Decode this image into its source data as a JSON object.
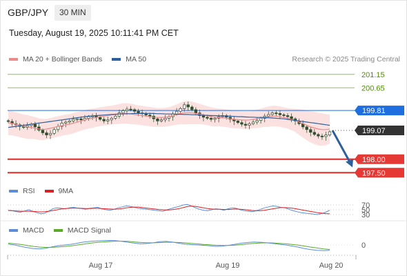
{
  "header": {
    "pair": "GBP/JPY",
    "timeframe": "30 MIN",
    "datetime": "Tuesday, August 19, 2025 10:11:41 PM CET",
    "credit": "Research © 2025 Trading Central"
  },
  "legend": {
    "ma20_label": "MA 20 + Bollinger Bands",
    "ma50_label": "MA 50",
    "rsi_label": "RSI",
    "ma9_label": "9MA",
    "macd_label": "MACD",
    "macd_signal_label": "MACD Signal"
  },
  "colors": {
    "ma20": "#f08a8a",
    "ma50": "#2d5f9e",
    "band": "#fbd7d7",
    "resistance": "#8bc34a",
    "support": "#e53935",
    "pivot": "#1e6ee0",
    "current": "#333333",
    "rsi": "#5b8ddb",
    "ma9": "#e02020",
    "macd": "#5b8ddb",
    "macd_signal": "#5aab2a",
    "arrow": "#2f5f9a"
  },
  "chart_data": {
    "type": "line",
    "instrument": "GBP/JPY",
    "timeframe": "30 MIN",
    "x_ticks": [
      "Aug 17",
      "Aug 19",
      "Aug 20"
    ],
    "ylim": [
      197.2,
      201.4
    ],
    "price_levels": [
      {
        "value": 201.15,
        "label": "201.15",
        "kind": "resistance"
      },
      {
        "value": 200.65,
        "label": "200.65",
        "kind": "resistance"
      },
      {
        "value": 199.81,
        "label": "199.81",
        "kind": "pivot"
      },
      {
        "value": 199.07,
        "label": "199.07",
        "kind": "current"
      },
      {
        "value": 198.0,
        "label": "198.00",
        "kind": "support"
      },
      {
        "value": 197.5,
        "label": "197.50",
        "kind": "support"
      }
    ],
    "close": [
      199.4,
      199.32,
      199.28,
      199.22,
      199.18,
      199.25,
      199.3,
      199.2,
      199.08,
      198.98,
      198.9,
      198.96,
      199.1,
      199.22,
      199.34,
      199.38,
      199.42,
      199.48,
      199.5,
      199.46,
      199.52,
      199.58,
      199.6,
      199.55,
      199.48,
      199.42,
      199.46,
      199.52,
      199.6,
      199.72,
      199.8,
      199.86,
      199.84,
      199.78,
      199.72,
      199.7,
      199.64,
      199.6,
      199.5,
      199.42,
      199.46,
      199.52,
      199.58,
      199.68,
      199.78,
      199.88,
      200.02,
      199.94,
      199.84,
      199.72,
      199.62,
      199.56,
      199.52,
      199.48,
      199.52,
      199.58,
      199.62,
      199.56,
      199.48,
      199.42,
      199.36,
      199.3,
      199.26,
      199.32,
      199.38,
      199.44,
      199.52,
      199.6,
      199.66,
      199.72,
      199.7,
      199.65,
      199.62,
      199.58,
      199.5,
      199.42,
      199.32,
      199.2,
      199.1,
      199.0,
      198.92,
      198.86,
      198.84,
      198.9,
      199.02
    ],
    "ma20": [
      199.35,
      199.33,
      199.3,
      199.26,
      199.22,
      199.2,
      199.18,
      199.15,
      199.12,
      199.1,
      199.12,
      199.15,
      199.18,
      199.22,
      199.25,
      199.28,
      199.3,
      199.34,
      199.38,
      199.42,
      199.46,
      199.5,
      199.52,
      199.55,
      199.58,
      199.6,
      199.62,
      199.64,
      199.66,
      199.68,
      199.7,
      199.7,
      199.68,
      199.66,
      199.64,
      199.62,
      199.6,
      199.58,
      199.56,
      199.55,
      199.55,
      199.56,
      199.58,
      199.62,
      199.66,
      199.7,
      199.72,
      199.73,
      199.72,
      199.7,
      199.68,
      199.65,
      199.62,
      199.58,
      199.56,
      199.55,
      199.54,
      199.52,
      199.5,
      199.48,
      199.47,
      199.46,
      199.45,
      199.46,
      199.48,
      199.5,
      199.53,
      199.56,
      199.58,
      199.6,
      199.6,
      199.58,
      199.55,
      199.52,
      199.48,
      199.44,
      199.38,
      199.32,
      199.26,
      199.2,
      199.16,
      199.12,
      199.1,
      199.1,
      199.12
    ],
    "bollinger_upper": [
      199.8,
      199.78,
      199.74,
      199.7,
      199.66,
      199.64,
      199.6,
      199.56,
      199.52,
      199.5,
      199.5,
      199.53,
      199.56,
      199.6,
      199.63,
      199.66,
      199.68,
      199.72,
      199.75,
      199.78,
      199.82,
      199.86,
      199.88,
      199.9,
      199.93,
      199.95,
      199.97,
      199.99,
      200.02,
      200.05,
      200.08,
      200.08,
      200.06,
      200.03,
      200.0,
      199.98,
      199.96,
      199.94,
      199.92,
      199.9,
      199.9,
      199.91,
      199.93,
      199.98,
      200.04,
      200.1,
      200.15,
      200.16,
      200.14,
      200.1,
      200.06,
      200.01,
      199.97,
      199.93,
      199.9,
      199.88,
      199.87,
      199.85,
      199.83,
      199.81,
      199.8,
      199.79,
      199.78,
      199.79,
      199.81,
      199.84,
      199.88,
      199.92,
      199.96,
      199.98,
      199.98,
      199.96,
      199.93,
      199.9,
      199.88,
      199.87,
      199.86,
      199.84,
      199.82,
      199.78,
      199.76,
      199.73,
      199.7,
      199.68,
      199.66
    ],
    "bollinger_lower": [
      198.9,
      198.88,
      198.86,
      198.82,
      198.78,
      198.76,
      198.76,
      198.74,
      198.72,
      198.7,
      198.74,
      198.77,
      198.8,
      198.84,
      198.87,
      198.9,
      198.92,
      198.96,
      199.01,
      199.06,
      199.1,
      199.14,
      199.16,
      199.2,
      199.23,
      199.25,
      199.27,
      199.29,
      199.3,
      199.31,
      199.32,
      199.32,
      199.3,
      199.29,
      199.28,
      199.26,
      199.24,
      199.22,
      199.2,
      199.2,
      199.2,
      199.21,
      199.23,
      199.26,
      199.28,
      199.3,
      199.29,
      199.3,
      199.3,
      199.3,
      199.3,
      199.29,
      199.27,
      199.23,
      199.22,
      199.22,
      199.21,
      199.19,
      199.17,
      199.15,
      199.14,
      199.13,
      199.12,
      199.13,
      199.15,
      199.16,
      199.18,
      199.2,
      199.2,
      199.22,
      199.22,
      199.2,
      199.17,
      199.14,
      199.08,
      199.01,
      198.9,
      198.8,
      198.7,
      198.62,
      198.56,
      198.51,
      198.5,
      198.52,
      198.58
    ],
    "ma50": [
      199.18,
      199.2,
      199.22,
      199.24,
      199.26,
      199.28,
      199.3,
      199.32,
      199.34,
      199.36,
      199.38,
      199.4,
      199.42,
      199.44,
      199.46,
      199.48,
      199.5,
      199.52,
      199.54,
      199.56,
      199.58,
      199.6,
      199.61,
      199.62,
      199.63,
      199.64,
      199.65,
      199.66,
      199.67,
      199.68,
      199.68,
      199.69,
      199.69,
      199.7,
      199.7,
      199.7,
      199.7,
      199.7,
      199.7,
      199.69,
      199.69,
      199.68,
      199.68,
      199.68,
      199.67,
      199.67,
      199.66,
      199.66,
      199.65,
      199.65,
      199.64,
      199.63,
      199.63,
      199.62,
      199.62,
      199.61,
      199.61,
      199.6,
      199.6,
      199.59,
      199.58,
      199.58,
      199.57,
      199.56,
      199.56,
      199.55,
      199.55,
      199.54,
      199.54,
      199.53,
      199.52,
      199.51,
      199.5,
      199.48,
      199.46,
      199.44,
      199.42,
      199.4,
      199.38,
      199.36,
      199.34,
      199.32,
      199.3,
      199.28,
      199.26
    ],
    "forecast_arrow": {
      "from_value": 199.07,
      "to_value": 197.7
    },
    "rsi": {
      "levels": [
        70,
        50,
        30
      ],
      "ylim": [
        10,
        90
      ],
      "values": [
        48,
        46,
        42,
        40,
        45,
        50,
        44,
        38,
        33,
        36,
        45,
        55,
        58,
        56,
        54,
        58,
        60,
        57,
        55,
        52,
        56,
        58,
        60,
        54,
        50,
        48,
        52,
        58,
        62,
        66,
        64,
        60,
        56,
        54,
        52,
        50,
        48,
        46,
        44,
        50,
        55,
        60,
        64,
        70,
        72,
        66,
        58,
        52,
        48,
        46,
        50,
        54,
        52,
        48,
        54,
        58,
        56,
        50,
        46,
        44,
        42,
        46,
        52,
        58,
        62,
        66,
        64,
        60,
        58,
        52,
        46,
        42,
        38,
        36,
        34,
        32,
        30,
        34,
        40,
        48
      ],
      "ma9": [
        47,
        46,
        45,
        44,
        44,
        44,
        43,
        42,
        41,
        42,
        44,
        47,
        50,
        53,
        55,
        56,
        57,
        57,
        56,
        55,
        55,
        56,
        56,
        55,
        54,
        53,
        52,
        53,
        55,
        58,
        60,
        61,
        61,
        59,
        57,
        55,
        53,
        51,
        50,
        49,
        50,
        52,
        55,
        59,
        63,
        65,
        64,
        61,
        58,
        55,
        53,
        52,
        52,
        51,
        51,
        52,
        53,
        52,
        51,
        49,
        47,
        46,
        46,
        48,
        51,
        54,
        57,
        59,
        59,
        58,
        56,
        53,
        50,
        47,
        44,
        41,
        38,
        36,
        34,
        33
      ]
    },
    "macd": {
      "zero_label": "0",
      "ylim": [
        -0.5,
        0.5
      ],
      "macd": [
        0.05,
        0.0,
        -0.08,
        -0.15,
        -0.2,
        -0.22,
        -0.18,
        -0.1,
        -0.04,
        0.0,
        0.04,
        0.1,
        0.16,
        0.2,
        0.22,
        0.24,
        0.25,
        0.24,
        0.2,
        0.15,
        0.1,
        0.06,
        0.08,
        0.12,
        0.18,
        0.2,
        0.16,
        0.1,
        0.05,
        0.02,
        0.0,
        -0.02,
        -0.05,
        -0.08,
        -0.06,
        -0.02,
        0.04,
        0.1,
        0.14,
        0.16,
        0.15,
        0.12,
        0.08,
        0.04,
        0.0,
        -0.06,
        -0.12,
        -0.2,
        -0.26,
        -0.3,
        -0.32,
        -0.3
      ],
      "signal": [
        0.1,
        0.07,
        0.03,
        -0.03,
        -0.08,
        -0.12,
        -0.14,
        -0.13,
        -0.11,
        -0.08,
        -0.05,
        0.0,
        0.05,
        0.1,
        0.14,
        0.17,
        0.19,
        0.21,
        0.21,
        0.2,
        0.17,
        0.14,
        0.12,
        0.12,
        0.13,
        0.15,
        0.15,
        0.14,
        0.12,
        0.09,
        0.06,
        0.03,
        0.01,
        -0.02,
        -0.03,
        -0.03,
        -0.01,
        0.02,
        0.06,
        0.09,
        0.11,
        0.12,
        0.11,
        0.09,
        0.07,
        0.03,
        -0.01,
        -0.06,
        -0.12,
        -0.17,
        -0.22,
        -0.25
      ]
    }
  }
}
